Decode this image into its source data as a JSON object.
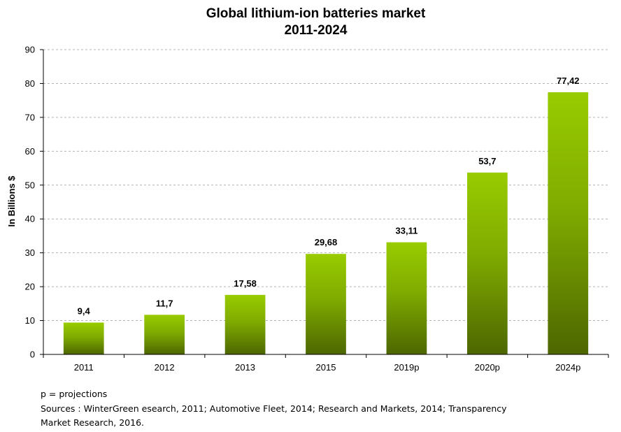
{
  "chart_data": {
    "type": "bar",
    "title_line1": "Global lithium-ion batteries market",
    "title_line2": "2011-2024",
    "xlabel": "",
    "ylabel": "In Billions $",
    "categories": [
      "2011",
      "2012",
      "2013",
      "2015",
      "2019p",
      "2020p",
      "2024p"
    ],
    "values": [
      9.4,
      11.7,
      17.58,
      29.68,
      33.11,
      53.7,
      77.42
    ],
    "value_labels": [
      "9,4",
      "11,7",
      "17,58",
      "29,68",
      "33,11",
      "53,7",
      "77,42"
    ],
    "ylim": [
      0,
      90
    ],
    "yticks": [
      0,
      10,
      20,
      30,
      40,
      50,
      60,
      70,
      80,
      90
    ],
    "grid": true,
    "legend": "none",
    "bar_color_top": "#99cc00",
    "bar_color_bottom": "#4d6600"
  },
  "footnotes": {
    "projections": "p = projections",
    "sources_line1": "Sources : WinterGreen esearch, 2011; Automotive Fleet, 2014; Research and Markets, 2014; Transparency",
    "sources_line2": "Market Research, 2016."
  }
}
